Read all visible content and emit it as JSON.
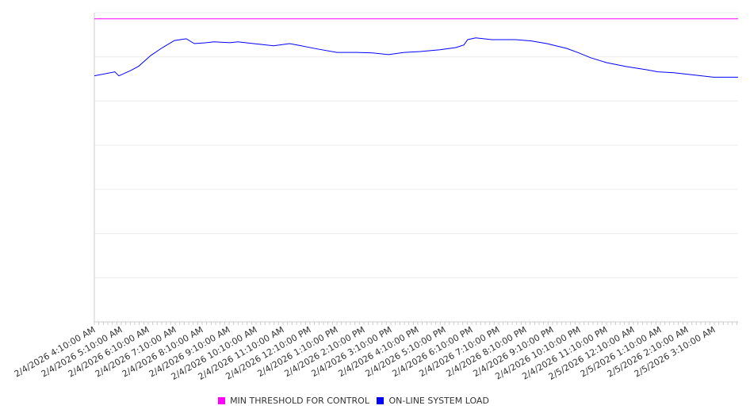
{
  "chart_data": {
    "type": "line",
    "title": "",
    "xlabel": "",
    "ylabel": "",
    "ylim": [
      0,
      7
    ],
    "y_gridlines": 7,
    "grid": true,
    "x_unit": "hours since 2/4/2026 4:10:00 AM",
    "xlim": [
      0,
      23.9
    ],
    "tick_labels": [
      "2/4/2026 4:10:00 AM",
      "2/4/2026 5:10:00 AM",
      "2/4/2026 6:10:00 AM",
      "2/4/2026 7:10:00 AM",
      "2/4/2026 8:10:00 AM",
      "2/4/2026 9:10:00 AM",
      "2/4/2026 10:10:00 AM",
      "2/4/2026 11:10:00 AM",
      "2/4/2026 12:10:00 PM",
      "2/4/2026 1:10:00 PM",
      "2/4/2026 2:10:00 PM",
      "2/4/2026 3:10:00 PM",
      "2/4/2026 4:10:00 PM",
      "2/4/2026 5:10:00 PM",
      "2/4/2026 6:10:00 PM",
      "2/4/2026 7:10:00 PM",
      "2/4/2026 8:10:00 PM",
      "2/4/2026 9:10:00 PM",
      "2/4/2026 10:10:00 PM",
      "2/4/2026 11:10:00 PM",
      "2/5/2026 12:10:00 AM",
      "2/5/2026 1:10:00 AM",
      "2/5/2026 2:10:00 AM",
      "2/5/2026 3:10:00 AM"
    ],
    "legend_position": "bottom",
    "series": [
      {
        "name": "MIN THRESHOLD FOR CONTROL",
        "color": "#ff00ff",
        "x": [
          0,
          23.9
        ],
        "y": [
          6.86,
          6.86
        ]
      },
      {
        "name": "ON-LINE SYSTEM LOAD",
        "color": "#0000ff",
        "x": [
          0,
          0.76,
          0.91,
          1.35,
          1.65,
          2.09,
          2.53,
          2.97,
          3.41,
          3.71,
          4.15,
          4.44,
          5.03,
          5.32,
          5.91,
          6.65,
          7.24,
          7.68,
          8.26,
          9.0,
          9.74,
          10.32,
          10.91,
          11.5,
          12.09,
          12.82,
          13.41,
          13.71,
          13.85,
          14.15,
          14.74,
          15.62,
          16.21,
          16.79,
          17.53,
          17.97,
          18.41,
          19.0,
          19.74,
          20.47,
          20.91,
          21.5,
          22.09,
          22.97,
          23.88
        ],
        "y": [
          5.57,
          5.66,
          5.57,
          5.69,
          5.79,
          6.03,
          6.21,
          6.37,
          6.41,
          6.3,
          6.32,
          6.34,
          6.32,
          6.34,
          6.3,
          6.25,
          6.3,
          6.25,
          6.18,
          6.1,
          6.1,
          6.09,
          6.05,
          6.1,
          6.12,
          6.16,
          6.21,
          6.27,
          6.39,
          6.43,
          6.39,
          6.39,
          6.36,
          6.3,
          6.19,
          6.09,
          5.98,
          5.87,
          5.78,
          5.71,
          5.66,
          5.64,
          5.6,
          5.54,
          5.54
        ]
      }
    ]
  }
}
